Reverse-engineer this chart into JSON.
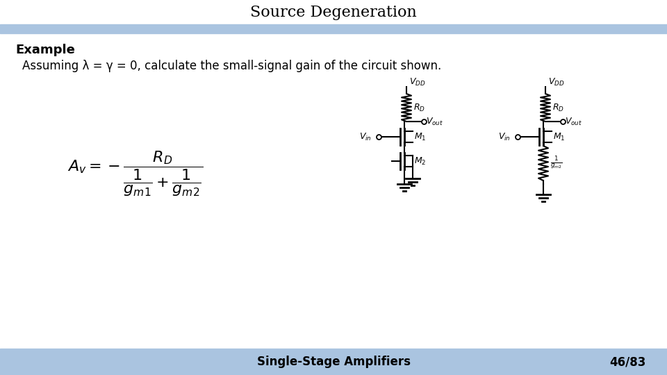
{
  "title": "Source Degeneration",
  "example_label": "Example",
  "subtitle": "Assuming λ = γ = 0, calculate the small-signal gain of the circuit shown.",
  "footer_left": "Single-Stage Amplifiers",
  "footer_right": "46/83",
  "header_bar_color": "#aac4e0",
  "footer_bar_color": "#aac4e0",
  "bg_color": "#ffffff",
  "title_fontsize": 16,
  "text_fontsize": 13,
  "footer_fontsize": 12
}
